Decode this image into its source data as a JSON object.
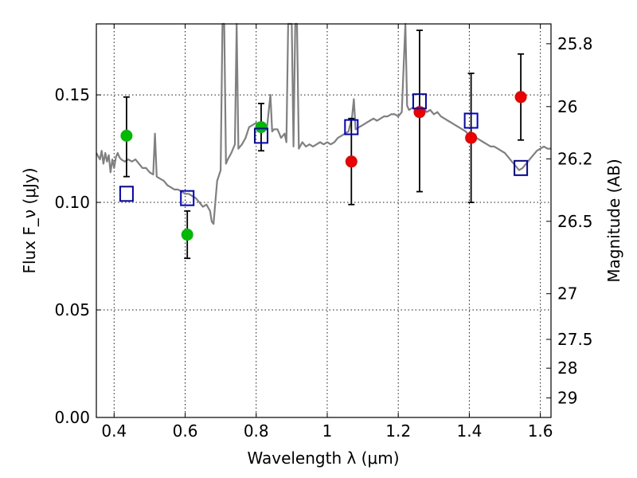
{
  "chart_data": {
    "type": "scatter",
    "xlabel": "Wavelength λ (μm)",
    "ylabel": "Flux F_ν (μJy)",
    "y2label": "Magnitude (AB)",
    "xlim": [
      0.35,
      1.63
    ],
    "ylim": [
      0.0,
      0.183
    ],
    "x_ticks": [
      {
        "value": 0.4,
        "label": "0.4"
      },
      {
        "value": 0.6,
        "label": "0.6"
      },
      {
        "value": 0.8,
        "label": "0.8"
      },
      {
        "value": 1.0,
        "label": "1"
      },
      {
        "value": 1.2,
        "label": "1.2"
      },
      {
        "value": 1.4,
        "label": "1.4"
      },
      {
        "value": 1.6,
        "label": "1.6"
      }
    ],
    "y_ticks": [
      {
        "value": 0.0,
        "label": "0.00"
      },
      {
        "value": 0.05,
        "label": "0.05"
      },
      {
        "value": 0.1,
        "label": "0.10"
      },
      {
        "value": 0.15,
        "label": "0.15"
      }
    ],
    "mag_ticks": [
      {
        "value": 25.8,
        "label": "25.8"
      },
      {
        "value": 26.0,
        "label": "26"
      },
      {
        "value": 26.2,
        "label": "26.2"
      },
      {
        "value": 26.5,
        "label": "26.5"
      },
      {
        "value": 27.0,
        "label": "27"
      },
      {
        "value": 27.5,
        "label": "27.5"
      },
      {
        "value": 28.0,
        "label": "28"
      },
      {
        "value": 29.0,
        "label": "29"
      }
    ],
    "grid": true,
    "colors": {
      "model_line": "#808080",
      "green_points": "#00bb00",
      "red_points": "#ee0000",
      "model_squares": "#0000cc",
      "error_bars": "#000000"
    },
    "series": [
      {
        "type": "errorbar-points",
        "color": "green",
        "points": [
          {
            "x": 0.435,
            "y": 0.131,
            "ylo": 0.112,
            "yhi": 0.149
          },
          {
            "x": 0.606,
            "y": 0.085,
            "ylo": 0.074,
            "yhi": 0.096
          },
          {
            "x": 0.814,
            "y": 0.135,
            "ylo": 0.124,
            "yhi": 0.146
          }
        ]
      },
      {
        "type": "errorbar-points",
        "color": "red",
        "points": [
          {
            "x": 1.068,
            "y": 0.119,
            "ylo": 0.099,
            "yhi": 0.139
          },
          {
            "x": 1.26,
            "y": 0.142,
            "ylo": 0.105,
            "yhi": 0.18
          },
          {
            "x": 1.405,
            "y": 0.13,
            "ylo": 0.1,
            "yhi": 0.16
          },
          {
            "x": 1.545,
            "y": 0.149,
            "ylo": 0.129,
            "yhi": 0.169
          }
        ]
      },
      {
        "type": "model-squares",
        "color": "blue",
        "points": [
          {
            "x": 0.435,
            "y": 0.104
          },
          {
            "x": 0.606,
            "y": 0.102
          },
          {
            "x": 0.814,
            "y": 0.131
          },
          {
            "x": 1.068,
            "y": 0.135
          },
          {
            "x": 1.26,
            "y": 0.147
          },
          {
            "x": 1.405,
            "y": 0.138
          },
          {
            "x": 1.545,
            "y": 0.116
          }
        ]
      },
      {
        "type": "line",
        "color": "gray",
        "points": [
          [
            0.35,
            0.123
          ],
          [
            0.36,
            0.12
          ],
          [
            0.365,
            0.124
          ],
          [
            0.37,
            0.118
          ],
          [
            0.375,
            0.123
          ],
          [
            0.38,
            0.119
          ],
          [
            0.385,
            0.122
          ],
          [
            0.39,
            0.114
          ],
          [
            0.395,
            0.12
          ],
          [
            0.4,
            0.116
          ],
          [
            0.405,
            0.121
          ],
          [
            0.41,
            0.123
          ],
          [
            0.415,
            0.121
          ],
          [
            0.42,
            0.12
          ],
          [
            0.43,
            0.119
          ],
          [
            0.44,
            0.12
          ],
          [
            0.45,
            0.119
          ],
          [
            0.46,
            0.12
          ],
          [
            0.47,
            0.118
          ],
          [
            0.48,
            0.116
          ],
          [
            0.49,
            0.116
          ],
          [
            0.5,
            0.114
          ],
          [
            0.51,
            0.113
          ],
          [
            0.515,
            0.132
          ],
          [
            0.52,
            0.112
          ],
          [
            0.53,
            0.111
          ],
          [
            0.54,
            0.11
          ],
          [
            0.55,
            0.108
          ],
          [
            0.56,
            0.107
          ],
          [
            0.57,
            0.106
          ],
          [
            0.58,
            0.106
          ],
          [
            0.59,
            0.105
          ],
          [
            0.6,
            0.104
          ],
          [
            0.61,
            0.104
          ],
          [
            0.62,
            0.103
          ],
          [
            0.63,
            0.102
          ],
          [
            0.64,
            0.1
          ],
          [
            0.65,
            0.098
          ],
          [
            0.66,
            0.099
          ],
          [
            0.67,
            0.096
          ],
          [
            0.675,
            0.091
          ],
          [
            0.68,
            0.09
          ],
          [
            0.685,
            0.1
          ],
          [
            0.69,
            0.11
          ],
          [
            0.7,
            0.115
          ],
          [
            0.705,
            0.19
          ],
          [
            0.71,
            0.19
          ],
          [
            0.715,
            0.118
          ],
          [
            0.72,
            0.12
          ],
          [
            0.73,
            0.123
          ],
          [
            0.74,
            0.127
          ],
          [
            0.745,
            0.19
          ],
          [
            0.75,
            0.125
          ],
          [
            0.76,
            0.127
          ],
          [
            0.77,
            0.13
          ],
          [
            0.78,
            0.135
          ],
          [
            0.79,
            0.136
          ],
          [
            0.8,
            0.137
          ],
          [
            0.81,
            0.136
          ],
          [
            0.82,
            0.135
          ],
          [
            0.83,
            0.134
          ],
          [
            0.84,
            0.15
          ],
          [
            0.845,
            0.133
          ],
          [
            0.85,
            0.134
          ],
          [
            0.86,
            0.134
          ],
          [
            0.87,
            0.13
          ],
          [
            0.88,
            0.132
          ],
          [
            0.885,
            0.128
          ],
          [
            0.89,
            0.19
          ],
          [
            0.895,
            0.19
          ],
          [
            0.9,
            0.19
          ],
          [
            0.905,
            0.126
          ],
          [
            0.91,
            0.19
          ],
          [
            0.915,
            0.19
          ],
          [
            0.92,
            0.125
          ],
          [
            0.93,
            0.128
          ],
          [
            0.94,
            0.126
          ],
          [
            0.95,
            0.127
          ],
          [
            0.96,
            0.126
          ],
          [
            0.97,
            0.127
          ],
          [
            0.98,
            0.128
          ],
          [
            0.99,
            0.127
          ],
          [
            1.0,
            0.128
          ],
          [
            1.01,
            0.127
          ],
          [
            1.02,
            0.128
          ],
          [
            1.03,
            0.13
          ],
          [
            1.04,
            0.131
          ],
          [
            1.05,
            0.132
          ],
          [
            1.06,
            0.133
          ],
          [
            1.07,
            0.14
          ],
          [
            1.075,
            0.148
          ],
          [
            1.08,
            0.134
          ],
          [
            1.09,
            0.135
          ],
          [
            1.1,
            0.136
          ],
          [
            1.11,
            0.137
          ],
          [
            1.12,
            0.138
          ],
          [
            1.13,
            0.139
          ],
          [
            1.14,
            0.138
          ],
          [
            1.15,
            0.139
          ],
          [
            1.16,
            0.14
          ],
          [
            1.17,
            0.14
          ],
          [
            1.18,
            0.141
          ],
          [
            1.19,
            0.141
          ],
          [
            1.2,
            0.14
          ],
          [
            1.21,
            0.142
          ],
          [
            1.22,
            0.19
          ],
          [
            1.225,
            0.145
          ],
          [
            1.23,
            0.143
          ],
          [
            1.24,
            0.144
          ],
          [
            1.25,
            0.143
          ],
          [
            1.26,
            0.144
          ],
          [
            1.27,
            0.144
          ],
          [
            1.28,
            0.142
          ],
          [
            1.29,
            0.143
          ],
          [
            1.3,
            0.141
          ],
          [
            1.31,
            0.142
          ],
          [
            1.32,
            0.14
          ],
          [
            1.33,
            0.139
          ],
          [
            1.34,
            0.138
          ],
          [
            1.35,
            0.137
          ],
          [
            1.36,
            0.136
          ],
          [
            1.37,
            0.135
          ],
          [
            1.38,
            0.134
          ],
          [
            1.39,
            0.133
          ],
          [
            1.4,
            0.131
          ],
          [
            1.41,
            0.13
          ],
          [
            1.42,
            0.13
          ],
          [
            1.43,
            0.129
          ],
          [
            1.44,
            0.128
          ],
          [
            1.45,
            0.127
          ],
          [
            1.46,
            0.126
          ],
          [
            1.47,
            0.126
          ],
          [
            1.48,
            0.125
          ],
          [
            1.49,
            0.124
          ],
          [
            1.5,
            0.123
          ],
          [
            1.51,
            0.121
          ],
          [
            1.52,
            0.119
          ],
          [
            1.53,
            0.117
          ],
          [
            1.54,
            0.115
          ],
          [
            1.55,
            0.116
          ],
          [
            1.56,
            0.118
          ],
          [
            1.57,
            0.12
          ],
          [
            1.58,
            0.122
          ],
          [
            1.59,
            0.124
          ],
          [
            1.6,
            0.125
          ],
          [
            1.61,
            0.126
          ],
          [
            1.62,
            0.125
          ],
          [
            1.63,
            0.125
          ]
        ]
      }
    ]
  }
}
